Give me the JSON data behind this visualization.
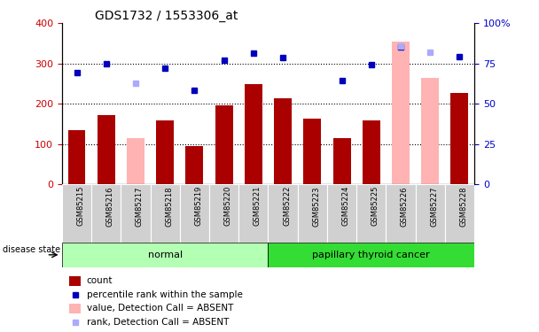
{
  "title": "GDS1732 / 1553306_at",
  "samples": [
    "GSM85215",
    "GSM85216",
    "GSM85217",
    "GSM85218",
    "GSM85219",
    "GSM85220",
    "GSM85221",
    "GSM85222",
    "GSM85223",
    "GSM85224",
    "GSM85225",
    "GSM85226",
    "GSM85227",
    "GSM85228"
  ],
  "bar_values": [
    135,
    172,
    null,
    158,
    95,
    197,
    249,
    213,
    163,
    115,
    158,
    null,
    null,
    226
  ],
  "bar_absent_values": [
    null,
    null,
    115,
    null,
    null,
    null,
    null,
    null,
    null,
    null,
    null,
    354,
    265,
    null
  ],
  "rank_values": [
    277,
    299,
    null,
    289,
    233,
    308,
    326,
    314,
    null,
    258,
    297,
    341,
    null,
    318
  ],
  "rank_absent_values": [
    null,
    null,
    252,
    null,
    null,
    null,
    null,
    null,
    null,
    null,
    null,
    344,
    328,
    null
  ],
  "bar_color": "#aa0000",
  "bar_absent_color": "#ffb3b3",
  "rank_color": "#0000bb",
  "rank_absent_color": "#aaaaff",
  "ylim_left": [
    0,
    400
  ],
  "ylim_right": [
    0,
    100
  ],
  "yticks_left": [
    0,
    100,
    200,
    300,
    400
  ],
  "yticks_right": [
    0,
    25,
    50,
    75,
    100
  ],
  "left_tick_color": "#cc0000",
  "right_tick_color": "#0000cc",
  "bar_width": 0.6,
  "rank_marker_size": 5,
  "normal_color": "#b3ffb3",
  "cancer_color": "#33dd33",
  "legend_items": [
    {
      "label": "count",
      "color": "#aa0000",
      "type": "rect"
    },
    {
      "label": "percentile rank within the sample",
      "color": "#0000bb",
      "type": "square"
    },
    {
      "label": "value, Detection Call = ABSENT",
      "color": "#ffb3b3",
      "type": "rect"
    },
    {
      "label": "rank, Detection Call = ABSENT",
      "color": "#aaaaff",
      "type": "square"
    }
  ]
}
